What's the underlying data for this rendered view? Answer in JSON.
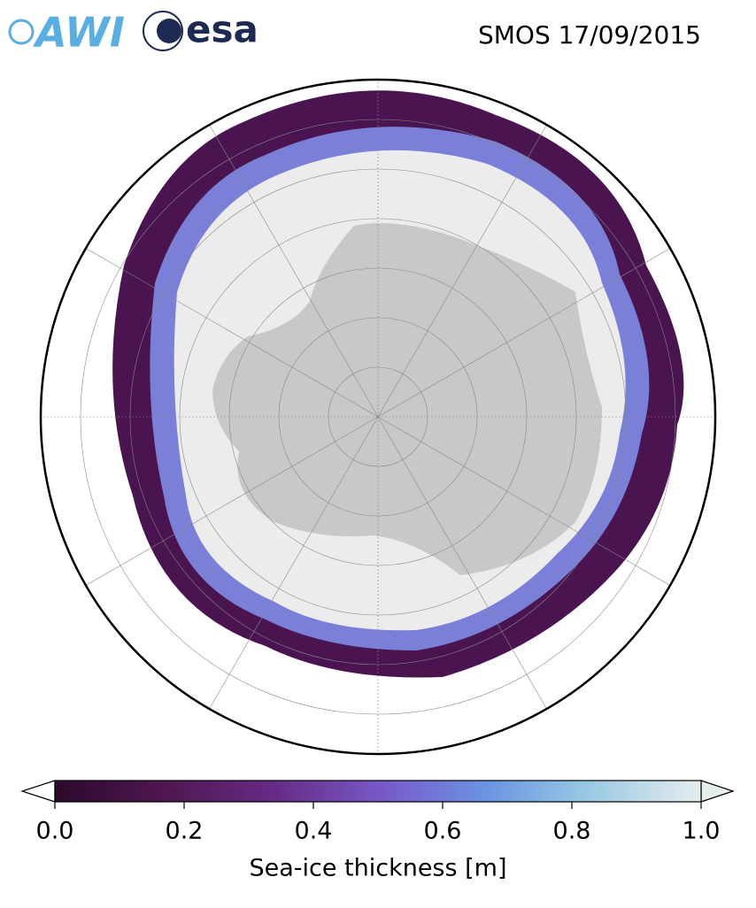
{
  "header": {
    "logos": [
      "AWI",
      "esa"
    ],
    "title": "SMOS 17/09/2015"
  },
  "colorbar": {
    "label": "Sea-ice thickness [m]",
    "lim": [
      0,
      1
    ],
    "ticks": [
      {
        "value": 0,
        "label": "0.0"
      },
      0.2,
      0.4,
      0.6,
      0.8,
      {
        "value": 1,
        "label": "1.0"
      }
    ],
    "colors": [
      "#2b0a2c",
      "#4f1650",
      "#652a82",
      "#7757c6",
      "#6b93e3",
      "#9ccbe3",
      "#e6eded"
    ]
  }
}
